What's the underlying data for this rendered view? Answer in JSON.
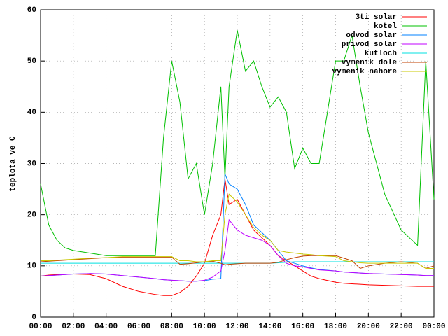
{
  "chart_data": {
    "type": "line",
    "y_label": "teplota ve C",
    "x": [
      0,
      0.5,
      1,
      1.5,
      2,
      3,
      4,
      5,
      6,
      7,
      7.5,
      8,
      8.5,
      9,
      9.5,
      10,
      10.5,
      11,
      11.25,
      11.5,
      12,
      12.5,
      13,
      13.5,
      14,
      14.5,
      15,
      15.5,
      16,
      16.5,
      17,
      18,
      18.5,
      19,
      19.5,
      20,
      21,
      22,
      23,
      23.5,
      24
    ],
    "xlim": [
      0,
      24
    ],
    "xticks": [
      {
        "value": 0,
        "label": "00:00"
      },
      {
        "value": 2,
        "label": "02:00"
      },
      {
        "value": 4,
        "label": "04:00"
      },
      {
        "value": 6,
        "label": "06:00"
      },
      {
        "value": 8,
        "label": "08:00"
      },
      {
        "value": 10,
        "label": "10:00"
      },
      {
        "value": 12,
        "label": "12:00"
      },
      {
        "value": 14,
        "label": "14:00"
      },
      {
        "value": 16,
        "label": "16:00"
      },
      {
        "value": 18,
        "label": "18:00"
      },
      {
        "value": 20,
        "label": "20:00"
      },
      {
        "value": 22,
        "label": "22:00"
      },
      {
        "value": 24,
        "label": "00:00"
      }
    ],
    "ylim": [
      0,
      60
    ],
    "yticks": [
      0,
      10,
      20,
      30,
      40,
      50,
      60
    ],
    "grid": true,
    "legend": "top-right",
    "series": [
      {
        "name": "3ti solar",
        "color": "#ff0000",
        "values": [
          8,
          8.2,
          8.3,
          8.4,
          8.4,
          8.3,
          7.5,
          6,
          5,
          4.4,
          4.2,
          4.2,
          4.8,
          6,
          8,
          10.5,
          16,
          20,
          27,
          22,
          23,
          20,
          17,
          15.5,
          14,
          12,
          11,
          10,
          9,
          8,
          7.5,
          6.8,
          6.6,
          6.5,
          6.4,
          6.3,
          6.2,
          6.1,
          6,
          6,
          6
        ]
      },
      {
        "name": "kotel",
        "color": "#00c000",
        "values": [
          26,
          18,
          15,
          13.5,
          13,
          12.5,
          12,
          12,
          12,
          12,
          35,
          50,
          42,
          27,
          30,
          20,
          30,
          45,
          27,
          45,
          56,
          48,
          50,
          45,
          41,
          43,
          40,
          29,
          33,
          30,
          30,
          50,
          50,
          55,
          45,
          36,
          24,
          17,
          14,
          50,
          23
        ]
      },
      {
        "name": "odvod solar",
        "color": "#0080ff",
        "values": [
          8,
          8.1,
          8.2,
          8.3,
          8.4,
          8.5,
          8.4,
          8.1,
          7.8,
          7.5,
          7.3,
          7.2,
          7.1,
          7,
          7,
          7.1,
          7.4,
          7.5,
          28,
          26,
          25,
          22,
          18,
          16.5,
          15,
          13,
          11,
          10.5,
          10,
          9.6,
          9.3,
          9,
          8.8,
          8.7,
          8.6,
          8.5,
          8.4,
          8.3,
          8.2,
          8.1,
          8.1
        ]
      },
      {
        "name": "privod solar",
        "color": "#c000ff",
        "values": [
          8,
          8.1,
          8.2,
          8.3,
          8.4,
          8.5,
          8.4,
          8.1,
          7.8,
          7.5,
          7.3,
          7.2,
          7.1,
          7,
          7,
          7.2,
          7.8,
          9,
          13,
          19,
          17,
          16,
          15.5,
          15,
          14,
          12,
          10.5,
          10,
          9.8,
          9.5,
          9.2,
          9,
          8.8,
          8.7,
          8.6,
          8.5,
          8.4,
          8.3,
          8.2,
          8.1,
          8.1
        ]
      },
      {
        "name": "kutloch",
        "color": "#00e0e0",
        "values": [
          10.5,
          10.5,
          10.5,
          10.5,
          10.5,
          10.5,
          10.5,
          10.5,
          10.5,
          10.5,
          10.5,
          10.5,
          10.5,
          10.5,
          10.5,
          10.5,
          10.5,
          10.5,
          10.5,
          10.5,
          10.5,
          10.5,
          10.5,
          10.5,
          10.5,
          10.6,
          10.7,
          10.8,
          10.8,
          10.8,
          10.8,
          10.8,
          10.8,
          10.8,
          10.8,
          10.8,
          10.8,
          10.8,
          10.8,
          10.8,
          10.8
        ]
      },
      {
        "name": "vymenik dole",
        "color": "#c04000",
        "values": [
          10.8,
          10.9,
          11,
          11.1,
          11.2,
          11.4,
          11.6,
          11.7,
          11.7,
          11.7,
          11.7,
          11.7,
          10.3,
          10.4,
          10.6,
          10.8,
          10.9,
          10.5,
          10.2,
          10.3,
          10.4,
          10.5,
          10.5,
          10.5,
          10.5,
          10.7,
          11.2,
          11.6,
          11.9,
          12,
          12,
          12,
          11.5,
          11,
          9.5,
          10,
          10.5,
          10.8,
          10.5,
          9.5,
          10
        ]
      },
      {
        "name": "vymenik nahore",
        "color": "#c8c800",
        "values": [
          11,
          11,
          11.1,
          11.2,
          11.3,
          11.5,
          11.6,
          11.8,
          11.8,
          11.8,
          11.8,
          11.8,
          11,
          11,
          10.8,
          10.8,
          11,
          11,
          20,
          24,
          22.5,
          20,
          17.5,
          16,
          15,
          13,
          12.7,
          12.5,
          12.3,
          12.2,
          12,
          11.8,
          11,
          10.8,
          10.6,
          10.5,
          10.5,
          10.5,
          10.5,
          9.5,
          9.5
        ]
      }
    ]
  }
}
